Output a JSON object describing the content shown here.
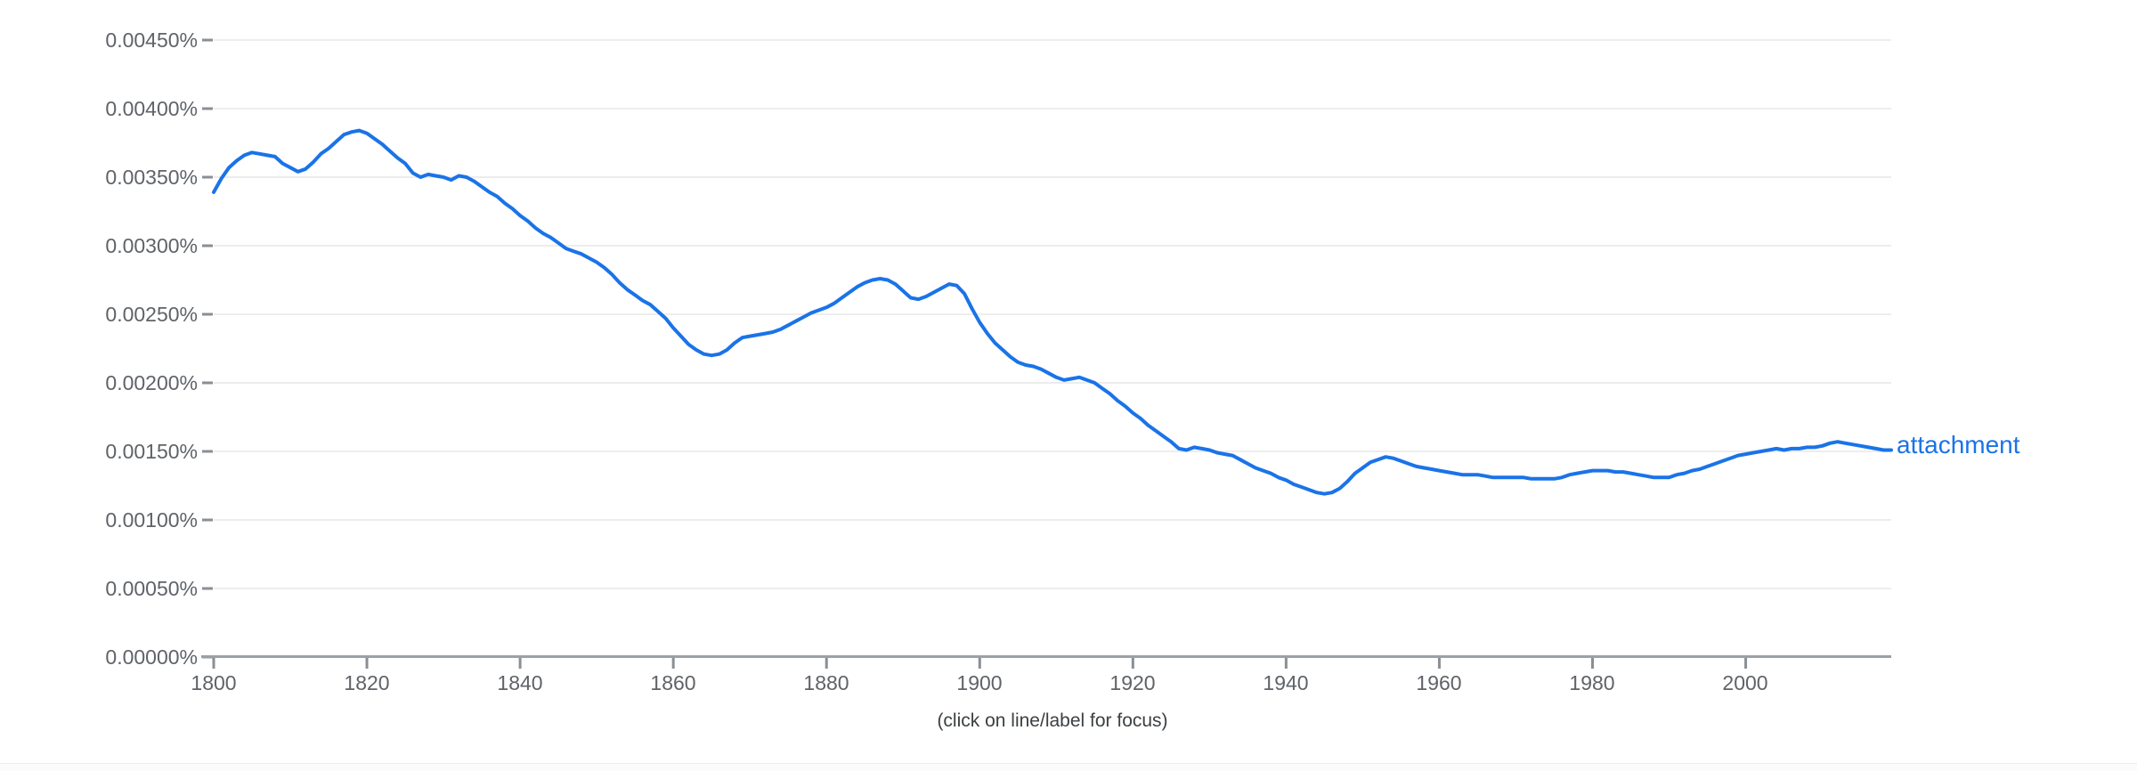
{
  "chart_data": {
    "type": "line",
    "title": "",
    "xlabel": "",
    "ylabel": "",
    "grid": true,
    "legend_position": "inline-end-of-line",
    "footer": "(click on line/label for focus)",
    "x_axis": {
      "range": [
        1800,
        2019
      ],
      "ticks": [
        "1800",
        "1820",
        "1840",
        "1860",
        "1880",
        "1900",
        "1920",
        "1940",
        "1960",
        "1980",
        "2000"
      ]
    },
    "y_axis": {
      "range_percent": [
        0,
        0.0045
      ],
      "ticks": [
        "0.00450%",
        "0.00400%",
        "0.00350%",
        "0.00300%",
        "0.00250%",
        "0.00200%",
        "0.00150%",
        "0.00100%",
        "0.00050%",
        "0.00000%"
      ]
    },
    "series": [
      {
        "name": "attachment",
        "color": "#1a73e8",
        "x_start": 1800,
        "x_step": 1,
        "values_percent": [
          0.00339,
          0.00349,
          0.00357,
          0.00362,
          0.00366,
          0.00368,
          0.00367,
          0.00366,
          0.00365,
          0.0036,
          0.00357,
          0.00354,
          0.00356,
          0.00361,
          0.00367,
          0.00371,
          0.00376,
          0.00381,
          0.00383,
          0.00384,
          0.00382,
          0.00378,
          0.00374,
          0.00369,
          0.00364,
          0.0036,
          0.00353,
          0.0035,
          0.00352,
          0.00351,
          0.0035,
          0.00348,
          0.00351,
          0.0035,
          0.00347,
          0.00343,
          0.00339,
          0.00336,
          0.00331,
          0.00327,
          0.00322,
          0.00318,
          0.00313,
          0.00309,
          0.00306,
          0.00302,
          0.00298,
          0.00296,
          0.00294,
          0.00291,
          0.00288,
          0.00284,
          0.00279,
          0.00273,
          0.00268,
          0.00264,
          0.0026,
          0.00257,
          0.00252,
          0.00247,
          0.0024,
          0.00234,
          0.00228,
          0.00224,
          0.00221,
          0.0022,
          0.00221,
          0.00224,
          0.00229,
          0.00233,
          0.00234,
          0.00235,
          0.00236,
          0.00237,
          0.00239,
          0.00242,
          0.00245,
          0.00248,
          0.00251,
          0.00253,
          0.00255,
          0.00258,
          0.00262,
          0.00266,
          0.0027,
          0.00273,
          0.00275,
          0.00276,
          0.00275,
          0.00272,
          0.00267,
          0.00262,
          0.00261,
          0.00263,
          0.00266,
          0.00269,
          0.00272,
          0.00271,
          0.00265,
          0.00254,
          0.00244,
          0.00236,
          0.00229,
          0.00224,
          0.00219,
          0.00215,
          0.00213,
          0.00212,
          0.0021,
          0.00207,
          0.00204,
          0.00202,
          0.00203,
          0.00204,
          0.00202,
          0.002,
          0.00196,
          0.00192,
          0.00187,
          0.00183,
          0.00178,
          0.00174,
          0.00169,
          0.00165,
          0.00161,
          0.00157,
          0.00152,
          0.00151,
          0.00153,
          0.00152,
          0.00151,
          0.00149,
          0.00148,
          0.00147,
          0.00144,
          0.00141,
          0.00138,
          0.00136,
          0.00134,
          0.00131,
          0.00129,
          0.00126,
          0.00124,
          0.00122,
          0.0012,
          0.00119,
          0.0012,
          0.00123,
          0.00128,
          0.00134,
          0.00138,
          0.00142,
          0.00144,
          0.00146,
          0.00145,
          0.00143,
          0.00141,
          0.00139,
          0.00138,
          0.00137,
          0.00136,
          0.00135,
          0.00134,
          0.00133,
          0.00133,
          0.00133,
          0.00132,
          0.00131,
          0.00131,
          0.00131,
          0.00131,
          0.00131,
          0.0013,
          0.0013,
          0.0013,
          0.0013,
          0.00131,
          0.00133,
          0.00134,
          0.00135,
          0.00136,
          0.00136,
          0.00136,
          0.00135,
          0.00135,
          0.00134,
          0.00133,
          0.00132,
          0.00131,
          0.00131,
          0.00131,
          0.00133,
          0.00134,
          0.00136,
          0.00137,
          0.00139,
          0.00141,
          0.00143,
          0.00145,
          0.00147,
          0.00148,
          0.00149,
          0.0015,
          0.00151,
          0.00152,
          0.00151,
          0.00152,
          0.00152,
          0.00153,
          0.00153,
          0.00154,
          0.00156,
          0.00157,
          0.00156,
          0.00155,
          0.00154,
          0.00153,
          0.00152,
          0.00151,
          0.00151
        ]
      }
    ],
    "colors": {
      "line_blue": "#1a73e8",
      "gridline": "#ededed",
      "axis_line": "#9aa0a6",
      "tick_mark": "#8a8f94",
      "axis_text": "#5f6368",
      "footer_text": "#3c4043"
    }
  }
}
